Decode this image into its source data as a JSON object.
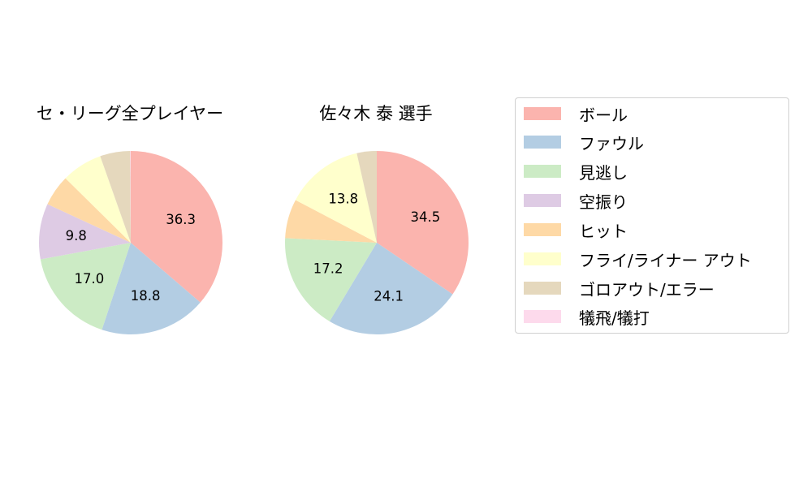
{
  "chart_data": [
    {
      "type": "pie",
      "title": "セ・リーグ全プレイヤー",
      "categories": [
        "ボール",
        "ファウル",
        "見逃し",
        "空振り",
        "ヒット",
        "フライ/ライナー アウト",
        "ゴロアウト/エラー",
        "犠飛/犠打"
      ],
      "values": [
        36.3,
        18.8,
        17.0,
        9.8,
        5.5,
        7.2,
        5.3,
        0.1
      ],
      "labels": [
        "36.3",
        "18.8",
        "17.0",
        "9.8",
        "",
        "",
        "",
        ""
      ]
    },
    {
      "type": "pie",
      "title": "佐々木 泰  選手",
      "categories": [
        "ボール",
        "ファウル",
        "見逃し",
        "空振り",
        "ヒット",
        "フライ/ライナー アウト",
        "ゴロアウト/エラー",
        "犠飛/犠打"
      ],
      "values": [
        34.5,
        24.1,
        17.2,
        0.0,
        6.9,
        13.8,
        3.5,
        0.0
      ],
      "labels": [
        "34.5",
        "24.1",
        "17.2",
        "",
        "",
        "13.8",
        "",
        ""
      ]
    }
  ],
  "legend": {
    "placement": "right",
    "items": [
      {
        "label": "ボール",
        "color": "#fbb4ae"
      },
      {
        "label": "ファウル",
        "color": "#b3cde3"
      },
      {
        "label": "見逃し",
        "color": "#ccebc5"
      },
      {
        "label": "空振り",
        "color": "#decbe4"
      },
      {
        "label": "ヒット",
        "color": "#fed9a6"
      },
      {
        "label": "フライ/ライナー アウト",
        "color": "#ffffcc"
      },
      {
        "label": "ゴロアウト/エラー",
        "color": "#e5d8bd"
      },
      {
        "label": "犠飛/犠打",
        "color": "#fddaec"
      }
    ]
  }
}
